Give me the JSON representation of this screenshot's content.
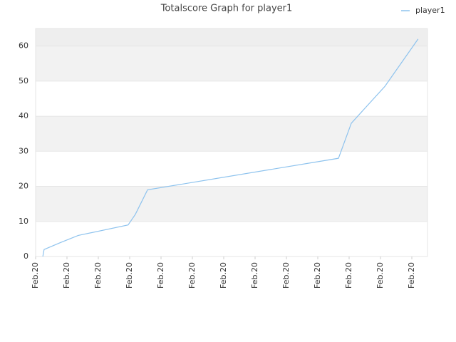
{
  "chart_data": {
    "type": "line",
    "title": "Totalscore Graph for player1",
    "x": [
      0.23,
      0.27,
      0.8,
      1.36,
      2.95,
      3.18,
      3.57,
      9.66,
      10.07,
      11.14,
      12.2
    ],
    "series": [
      {
        "name": "player1",
        "color": "#8ec3ee",
        "values": [
          0,
          2,
          4,
          6,
          9,
          12,
          19,
          28,
          38,
          48.5,
          62
        ]
      }
    ],
    "xlim": [
      0,
      12.5
    ],
    "xticks": [
      {
        "value": 0,
        "label": "Feb.20"
      },
      {
        "value": 1,
        "label": "Feb.20"
      },
      {
        "value": 2,
        "label": "Feb.20"
      },
      {
        "value": 3,
        "label": "Feb.20"
      },
      {
        "value": 4,
        "label": "Feb.20"
      },
      {
        "value": 5,
        "label": "Feb.20"
      },
      {
        "value": 6,
        "label": "Feb.20"
      },
      {
        "value": 7,
        "label": "Feb.20"
      },
      {
        "value": 8,
        "label": "Feb.20"
      },
      {
        "value": 9,
        "label": "Feb.20"
      },
      {
        "value": 10,
        "label": "Feb.20"
      },
      {
        "value": 11,
        "label": "Feb.20"
      },
      {
        "value": 12,
        "label": "Feb.20"
      }
    ],
    "ylim": [
      0,
      65
    ],
    "yticks": [
      0,
      10,
      20,
      30,
      40,
      50,
      60
    ],
    "grid": true,
    "bands": true,
    "legend": "top-right"
  }
}
